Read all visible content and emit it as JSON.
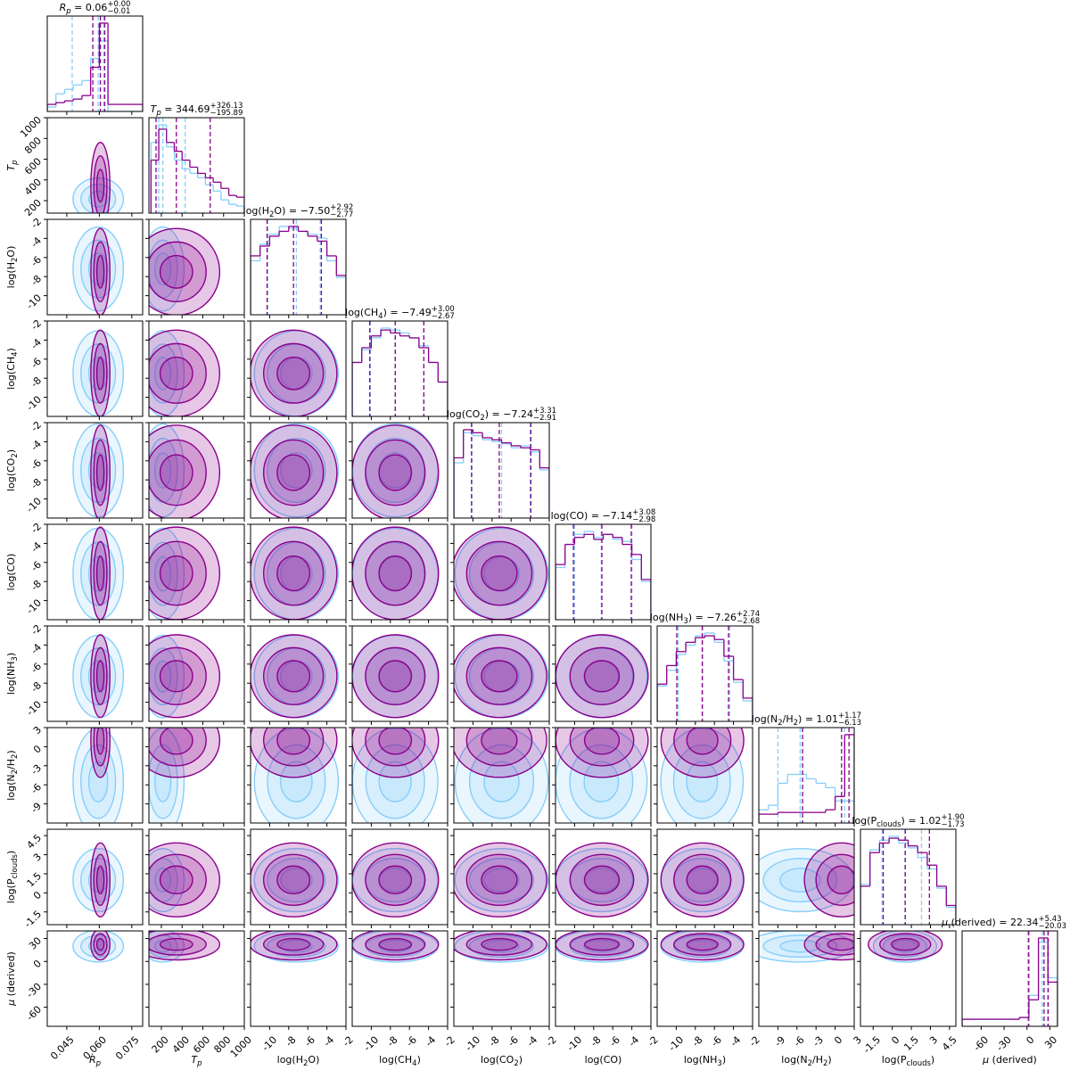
{
  "chart_data": {
    "type": "corner",
    "colors": [
      "#8b008b",
      "#87cefa"
    ],
    "params": [
      {
        "label": [
          {
            "text": "R",
            "italic": true
          },
          {
            "text": "p",
            "sub": true,
            "italic": true
          }
        ],
        "title": [
          {
            "text": "R",
            "italic": true
          },
          {
            "text": "p",
            "sub": true,
            "italic": true
          },
          {
            "text": " = 0.06"
          },
          {
            "text": "+0.00",
            "sup": true
          },
          {
            "text": "−0.01",
            "sub": true
          }
        ],
        "lim": [
          0.036,
          0.08
        ],
        "ticks": [
          0.045,
          {
            "value": 0.06,
            "label": "0.060"
          },
          0.075
        ],
        "bins": [
          0.036,
          0.04,
          0.044,
          0.048,
          0.052,
          0.056,
          0.06,
          0.064,
          0.068,
          0.072,
          0.076,
          0.08
        ],
        "hist": [
          [
            8,
            10,
            12,
            14,
            18,
            50,
            100,
            8,
            8,
            8,
            8
          ],
          [
            5,
            20,
            25,
            30,
            35,
            60,
            80,
            0,
            0,
            0,
            0
          ]
        ],
        "quantiles": [
          [
            0.057,
            0.0605,
            0.0625
          ],
          [
            0.0475,
            0.0595,
            0.062
          ]
        ]
      },
      {
        "label": [
          {
            "text": "T",
            "italic": true
          },
          {
            "text": "p",
            "sub": true,
            "italic": true
          }
        ],
        "title": [
          {
            "text": "T",
            "italic": true
          },
          {
            "text": "p",
            "sub": true,
            "italic": true
          },
          {
            "text": " = 344.69"
          },
          {
            "text": "+326.13",
            "sup": true
          },
          {
            "text": "−195.89",
            "sub": true
          }
        ],
        "lim": [
          80,
          1000
        ],
        "ticks": [
          200,
          400,
          600,
          800,
          1000
        ],
        "bins": [
          100,
          175,
          250,
          325,
          400,
          475,
          550,
          625,
          700,
          775,
          850,
          925,
          1000
        ],
        "hist": [
          [
            60,
            95,
            80,
            70,
            60,
            52,
            45,
            40,
            35,
            28,
            20,
            18
          ],
          [
            80,
            100,
            75,
            60,
            50,
            45,
            40,
            32,
            25,
            15,
            10,
            8
          ]
        ],
        "quantiles": [
          [
            148.8,
            344.69,
            670.82
          ],
          [
            175,
            215,
            430
          ]
        ]
      },
      {
        "label": [
          {
            "text": "log(H"
          },
          {
            "text": "2",
            "sub": true
          },
          {
            "text": "O)"
          }
        ],
        "title": [
          {
            "text": "log(H"
          },
          {
            "text": "2",
            "sub": true
          },
          {
            "text": "O) = −7.50"
          },
          {
            "text": "+2.92",
            "sup": true
          },
          {
            "text": "−2.77",
            "sub": true
          }
        ],
        "lim": [
          -12,
          -2
        ],
        "ticks": [
          -10,
          -8,
          -6,
          -4,
          -2
        ],
        "bins": [
          -12,
          -11,
          -10,
          -9,
          -8,
          -7,
          -6,
          -5,
          -4,
          -3,
          -2
        ],
        "hist": [
          [
            60,
            70,
            80,
            85,
            90,
            85,
            80,
            75,
            60,
            40
          ],
          [
            55,
            72,
            82,
            90,
            88,
            85,
            82,
            78,
            55,
            38
          ]
        ],
        "quantiles": [
          [
            -10.27,
            -7.5,
            -4.58
          ],
          [
            -10.2,
            -7.2,
            -4.7
          ]
        ]
      },
      {
        "label": [
          {
            "text": "log(CH"
          },
          {
            "text": "4",
            "sub": true
          },
          {
            "text": ")"
          }
        ],
        "title": [
          {
            "text": "log(CH"
          },
          {
            "text": "4",
            "sub": true
          },
          {
            "text": ") = −7.49"
          },
          {
            "text": "+3.00",
            "sup": true
          },
          {
            "text": "−2.67",
            "sub": true
          }
        ],
        "lim": [
          -12,
          -2
        ],
        "ticks": [
          -10,
          -8,
          -6,
          -4,
          -2
        ],
        "bins": [
          -12,
          -11,
          -10,
          -9,
          -8,
          -7,
          -6,
          -5,
          -4,
          -3,
          -2
        ],
        "hist": [
          [
            55,
            70,
            82,
            88,
            85,
            82,
            80,
            70,
            55,
            35
          ],
          [
            55,
            68,
            80,
            90,
            88,
            85,
            80,
            72,
            55,
            35
          ]
        ],
        "quantiles": [
          [
            -10.16,
            -7.49,
            -4.49
          ],
          [
            -10.1,
            -7.5,
            -4.5
          ]
        ]
      },
      {
        "label": [
          {
            "text": "log(CO"
          },
          {
            "text": "2",
            "sub": true
          },
          {
            "text": ")"
          }
        ],
        "title": [
          {
            "text": "log(CO"
          },
          {
            "text": "2",
            "sub": true
          },
          {
            "text": ") = −7.24"
          },
          {
            "text": "+3.31",
            "sup": true
          },
          {
            "text": "−2.91",
            "sub": true
          }
        ],
        "lim": [
          -12,
          -2
        ],
        "ticks": [
          -10,
          -8,
          -6,
          -4,
          -2
        ],
        "bins": [
          -12,
          -11,
          -10,
          -9,
          -8,
          -7,
          -6,
          -5,
          -4,
          -3,
          -2
        ],
        "hist": [
          [
            60,
            88,
            85,
            80,
            78,
            75,
            72,
            70,
            68,
            50
          ],
          [
            55,
            85,
            82,
            78,
            76,
            74,
            70,
            72,
            66,
            48
          ]
        ],
        "quantiles": [
          [
            -10.15,
            -7.24,
            -3.93
          ],
          [
            -10.1,
            -7.0,
            -4.0
          ]
        ]
      },
      {
        "label": [
          {
            "text": "log(CO)"
          }
        ],
        "title": [
          {
            "text": "log(CO) = −7.14"
          },
          {
            "text": "+3.08",
            "sup": true
          },
          {
            "text": "−2.98",
            "sub": true
          }
        ],
        "lim": [
          -12,
          -2
        ],
        "ticks": [
          -10,
          -8,
          -6,
          -4,
          -2
        ],
        "bins": [
          -12,
          -11,
          -10,
          -9,
          -8,
          -7,
          -6,
          -5,
          -4,
          -3,
          -2
        ],
        "hist": [
          [
            55,
            75,
            82,
            85,
            80,
            85,
            82,
            75,
            65,
            40
          ],
          [
            52,
            75,
            85,
            88,
            82,
            85,
            80,
            78,
            60,
            38
          ]
        ],
        "quantiles": [
          [
            -10.12,
            -7.14,
            -4.06
          ],
          [
            -10.0,
            -7.2,
            -4.0
          ]
        ]
      },
      {
        "label": [
          {
            "text": "log(NH"
          },
          {
            "text": "3",
            "sub": true
          },
          {
            "text": ")"
          }
        ],
        "title": [
          {
            "text": "log(NH"
          },
          {
            "text": "3",
            "sub": true
          },
          {
            "text": ") = −7.26"
          },
          {
            "text": "+2.74",
            "sup": true
          },
          {
            "text": "−2.68",
            "sub": true
          }
        ],
        "lim": [
          -12,
          -2
        ],
        "ticks": [
          -10,
          -8,
          -6,
          -4,
          -2
        ],
        "bins": [
          -12,
          -11,
          -10,
          -9,
          -8,
          -7,
          -6,
          -5,
          -4,
          -3,
          -2
        ],
        "hist": [
          [
            40,
            60,
            75,
            85,
            90,
            92,
            88,
            70,
            45,
            25
          ],
          [
            38,
            55,
            72,
            82,
            92,
            95,
            85,
            65,
            42,
            22
          ]
        ],
        "quantiles": [
          [
            -9.94,
            -7.26,
            -4.52
          ],
          [
            -9.8,
            -7.3,
            -4.4
          ]
        ]
      },
      {
        "label": [
          {
            "text": "log(N"
          },
          {
            "text": "2",
            "sub": true
          },
          {
            "text": "/H"
          },
          {
            "text": "2",
            "sub": true
          },
          {
            "text": ")"
          }
        ],
        "title": [
          {
            "text": "log(N"
          },
          {
            "text": "2",
            "sub": true
          },
          {
            "text": "/H"
          },
          {
            "text": "2",
            "sub": true
          },
          {
            "text": ") = 1.01"
          },
          {
            "text": "+1.17",
            "sup": true
          },
          {
            "text": "−6.13",
            "sub": true
          }
        ],
        "lim": [
          -12,
          3
        ],
        "ticks": [
          -9,
          -6,
          -3,
          0,
          3
        ],
        "bins": [
          -12,
          -10.5,
          -9,
          -7.5,
          -6,
          -4.5,
          -3,
          -1.5,
          0,
          1.5,
          3
        ],
        "hist": [
          [
            10,
            10,
            12,
            12,
            12,
            12,
            12,
            15,
            30,
            100
          ],
          [
            15,
            20,
            45,
            55,
            55,
            50,
            45,
            40,
            25,
            25
          ]
        ],
        "quantiles": [
          [
            -5.12,
            1.01,
            2.18
          ],
          [
            -9.0,
            -5.5,
            1.5
          ]
        ]
      },
      {
        "label": [
          {
            "text": "log(P"
          },
          {
            "text": "clouds",
            "sub": true
          },
          {
            "text": ")"
          }
        ],
        "title": [
          {
            "text": "log(P"
          },
          {
            "text": "clouds",
            "sub": true
          },
          {
            "text": ") = 1.02"
          },
          {
            "text": "+1.90",
            "sup": true
          },
          {
            "text": "−1.73",
            "sub": true
          }
        ],
        "lim": [
          -2.5,
          5
        ],
        "ticks": [
          -1.5,
          0,
          1.5,
          3,
          4.5
        ],
        "bins": [
          -2.5,
          -1.75,
          -1,
          -0.25,
          0.5,
          1.25,
          2,
          2.75,
          3.5,
          4.25,
          5
        ],
        "hist": [
          [
            40,
            75,
            85,
            90,
            88,
            82,
            75,
            62,
            40,
            20
          ],
          [
            42,
            78,
            88,
            92,
            85,
            80,
            70,
            58,
            38,
            18
          ]
        ],
        "quantiles": [
          [
            -0.71,
            1.02,
            2.92
          ],
          [
            -0.8,
            1.0,
            2.3
          ]
        ]
      },
      {
        "label": [
          {
            "text": "μ",
            "italic": true
          },
          {
            "text": " (derived)"
          }
        ],
        "title": [
          {
            "text": "μ",
            "italic": true
          },
          {
            "text": " (derived) = 22.34"
          },
          {
            "text": "+5.43",
            "sup": true
          },
          {
            "text": "−20.03",
            "sub": true
          }
        ],
        "lim": [
          -85,
          40
        ],
        "ticks": [
          -60,
          -30,
          0,
          30
        ],
        "bins": [
          -85,
          -72.5,
          -60,
          -47.5,
          -35,
          -22.5,
          -10,
          2.5,
          15,
          27.5,
          40
        ],
        "hist": [
          [
            8,
            8,
            8,
            8,
            8,
            8,
            10,
            30,
            100,
            50
          ],
          [
            8,
            8,
            8,
            8,
            8,
            8,
            10,
            35,
            95,
            55
          ]
        ],
        "quantiles": [
          [
            2.31,
            22.34,
            27.77
          ],
          [
            1.0,
            20,
            27
          ]
        ]
      }
    ]
  }
}
